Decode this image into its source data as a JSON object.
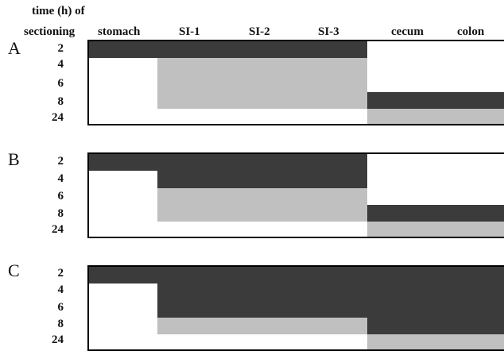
{
  "header": {
    "time_line1": "time (h) of",
    "time_line2": "sectioning",
    "columns": [
      "stomach",
      "SI-1",
      "SI-2",
      "SI-3",
      "cecum",
      "colon"
    ]
  },
  "rows": [
    "2",
    "4",
    "6",
    "8",
    "24"
  ],
  "panels": [
    {
      "letter": "A",
      "regions": [
        {
          "shade": "dark",
          "row_from": 0,
          "row_to": 1,
          "col_from": 0,
          "col_to": 4
        },
        {
          "shade": "light",
          "row_from": 1,
          "row_to": 4,
          "col_from": 1,
          "col_to": 4
        },
        {
          "shade": "dark",
          "row_from": 3,
          "row_to": 4,
          "col_from": 4,
          "col_to": 6
        },
        {
          "shade": "light",
          "row_from": 4,
          "row_to": 5,
          "col_from": 4,
          "col_to": 6
        }
      ]
    },
    {
      "letter": "B",
      "regions": [
        {
          "shade": "dark",
          "row_from": 0,
          "row_to": 1,
          "col_from": 0,
          "col_to": 4
        },
        {
          "shade": "dark",
          "row_from": 1,
          "row_to": 2,
          "col_from": 1,
          "col_to": 4
        },
        {
          "shade": "light",
          "row_from": 2,
          "row_to": 4,
          "col_from": 1,
          "col_to": 4
        },
        {
          "shade": "dark",
          "row_from": 3,
          "row_to": 4,
          "col_from": 4,
          "col_to": 6
        },
        {
          "shade": "light",
          "row_from": 4,
          "row_to": 5,
          "col_from": 4,
          "col_to": 6
        }
      ]
    },
    {
      "letter": "C",
      "regions": [
        {
          "shade": "dark",
          "row_from": 0,
          "row_to": 1,
          "col_from": 0,
          "col_to": 6
        },
        {
          "shade": "dark",
          "row_from": 1,
          "row_to": 3,
          "col_from": 1,
          "col_to": 6
        },
        {
          "shade": "light",
          "row_from": 3,
          "row_to": 4,
          "col_from": 1,
          "col_to": 4
        },
        {
          "shade": "dark",
          "row_from": 3,
          "row_to": 4,
          "col_from": 4,
          "col_to": 6
        },
        {
          "shade": "light",
          "row_from": 4,
          "row_to": 5,
          "col_from": 4,
          "col_to": 6
        }
      ]
    }
  ],
  "colors": {
    "dark": "#3b3b3b",
    "light": "#c0c0c0",
    "border": "#000000"
  }
}
